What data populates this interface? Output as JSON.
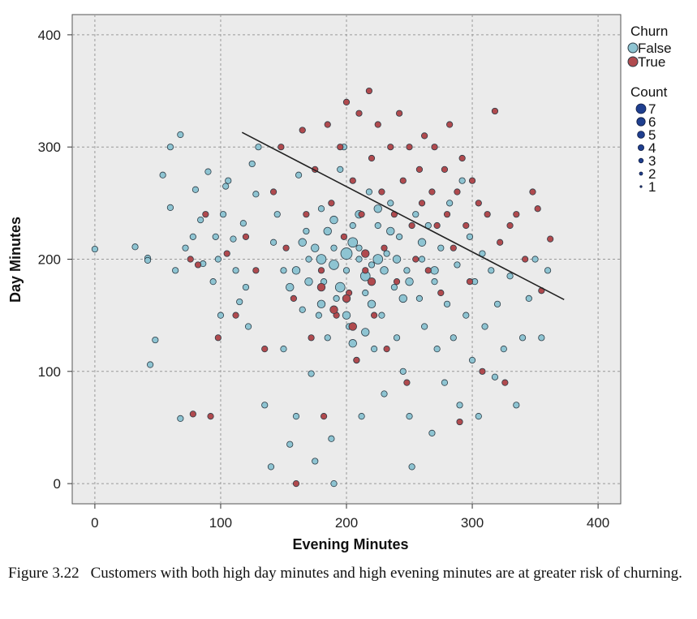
{
  "chart_data": {
    "type": "scatter",
    "xlabel": "Evening Minutes",
    "ylabel": "Day Minutes",
    "xlim": [
      -18,
      418
    ],
    "ylim": [
      -18,
      418
    ],
    "xticks": [
      0,
      100,
      200,
      300,
      400
    ],
    "yticks": [
      0,
      100,
      200,
      300,
      400
    ],
    "grid": true,
    "legend_placement": "right",
    "colors": {
      "False": "#8ec4d2",
      "True": "#b04a4e",
      "panel": "#ebebeb",
      "count": "#1f3f8f"
    },
    "legend_churn": {
      "title": "Churn",
      "entries": [
        "False",
        "True"
      ]
    },
    "legend_count": {
      "title": "Count",
      "entries": [
        "7",
        "6",
        "5",
        "4",
        "3",
        "2",
        "1"
      ]
    },
    "series": [
      {
        "name": "False",
        "points": [
          [
            0,
            209
          ],
          [
            32,
            211
          ],
          [
            42,
            201
          ],
          [
            42,
            199
          ],
          [
            44,
            106
          ],
          [
            48,
            128
          ],
          [
            54,
            275
          ],
          [
            60,
            300
          ],
          [
            60,
            246
          ],
          [
            64,
            190
          ],
          [
            68,
            311
          ],
          [
            68,
            58
          ],
          [
            72,
            210
          ],
          [
            78,
            220
          ],
          [
            80,
            262
          ],
          [
            84,
            235
          ],
          [
            86,
            196
          ],
          [
            90,
            278
          ],
          [
            94,
            180
          ],
          [
            96,
            220
          ],
          [
            98,
            200
          ],
          [
            100,
            150
          ],
          [
            102,
            240
          ],
          [
            104,
            265
          ],
          [
            106,
            270
          ],
          [
            110,
            218
          ],
          [
            112,
            190
          ],
          [
            115,
            162
          ],
          [
            118,
            232
          ],
          [
            120,
            175
          ],
          [
            122,
            140
          ],
          [
            125,
            285
          ],
          [
            128,
            258
          ],
          [
            130,
            300
          ],
          [
            135,
            70
          ],
          [
            140,
            15
          ],
          [
            142,
            215
          ],
          [
            145,
            240
          ],
          [
            150,
            190
          ],
          [
            150,
            120
          ],
          [
            155,
            35
          ],
          [
            160,
            60
          ],
          [
            162,
            275
          ],
          [
            165,
            155
          ],
          [
            168,
            225
          ],
          [
            170,
            200
          ],
          [
            172,
            98
          ],
          [
            175,
            20
          ],
          [
            178,
            150
          ],
          [
            180,
            245
          ],
          [
            182,
            180
          ],
          [
            185,
            130
          ],
          [
            188,
            40
          ],
          [
            190,
            0
          ],
          [
            190,
            210
          ],
          [
            192,
            165
          ],
          [
            195,
            280
          ],
          [
            198,
            300
          ],
          [
            200,
            190
          ],
          [
            202,
            140
          ],
          [
            205,
            230
          ],
          [
            208,
            110
          ],
          [
            210,
            210
          ],
          [
            212,
            60
          ],
          [
            215,
            170
          ],
          [
            218,
            260
          ],
          [
            220,
            195
          ],
          [
            222,
            120
          ],
          [
            225,
            230
          ],
          [
            228,
            150
          ],
          [
            230,
            80
          ],
          [
            232,
            205
          ],
          [
            235,
            250
          ],
          [
            238,
            175
          ],
          [
            240,
            130
          ],
          [
            242,
            220
          ],
          [
            245,
            100
          ],
          [
            248,
            190
          ],
          [
            250,
            60
          ],
          [
            252,
            15
          ],
          [
            255,
            240
          ],
          [
            258,
            165
          ],
          [
            260,
            200
          ],
          [
            262,
            140
          ],
          [
            265,
            230
          ],
          [
            268,
            45
          ],
          [
            270,
            180
          ],
          [
            272,
            120
          ],
          [
            275,
            210
          ],
          [
            278,
            90
          ],
          [
            280,
            160
          ],
          [
            282,
            250
          ],
          [
            285,
            130
          ],
          [
            288,
            195
          ],
          [
            290,
            70
          ],
          [
            292,
            270
          ],
          [
            295,
            150
          ],
          [
            298,
            220
          ],
          [
            300,
            110
          ],
          [
            302,
            180
          ],
          [
            305,
            60
          ],
          [
            308,
            205
          ],
          [
            310,
            140
          ],
          [
            315,
            190
          ],
          [
            318,
            95
          ],
          [
            320,
            160
          ],
          [
            325,
            120
          ],
          [
            330,
            185
          ],
          [
            335,
            70
          ],
          [
            340,
            130
          ],
          [
            345,
            165
          ],
          [
            350,
            200
          ],
          [
            355,
            130
          ],
          [
            360,
            190
          ],
          [
            210,
            200
          ],
          [
            200,
            205
          ],
          [
            190,
            195
          ],
          [
            215,
            185
          ],
          [
            205,
            215
          ],
          [
            180,
            200
          ],
          [
            225,
            200
          ],
          [
            195,
            175
          ],
          [
            230,
            190
          ],
          [
            185,
            225
          ],
          [
            170,
            180
          ],
          [
            240,
            200
          ],
          [
            220,
            160
          ],
          [
            160,
            190
          ],
          [
            250,
            180
          ],
          [
            210,
            240
          ],
          [
            200,
            150
          ],
          [
            175,
            210
          ],
          [
            235,
            225
          ],
          [
            165,
            215
          ],
          [
            215,
            135
          ],
          [
            245,
            165
          ],
          [
            190,
            235
          ],
          [
            260,
            215
          ],
          [
            155,
            175
          ],
          [
            205,
            125
          ],
          [
            270,
            190
          ],
          [
            180,
            160
          ],
          [
            225,
            245
          ]
        ],
        "sizes": [
          2,
          2,
          2,
          2,
          2,
          2,
          2,
          2,
          2,
          2,
          2,
          2,
          2,
          2,
          2,
          2,
          2,
          2,
          2,
          2,
          2,
          2,
          2,
          2,
          2,
          2,
          2,
          2,
          2,
          2,
          2,
          2,
          2,
          2,
          2,
          2,
          2,
          2,
          2,
          2,
          2,
          2,
          2,
          2,
          2,
          2,
          2,
          2,
          2,
          2,
          2,
          2,
          2,
          2,
          2,
          2,
          2,
          2,
          2,
          2,
          2,
          2,
          2,
          2,
          2,
          2,
          2,
          2,
          2,
          2,
          2,
          2,
          2,
          2,
          2,
          2,
          2,
          2,
          2,
          2,
          2,
          2,
          2,
          2,
          2,
          2,
          2,
          2,
          2,
          2,
          2,
          2,
          2,
          2,
          2,
          2,
          2,
          2,
          2,
          2,
          2,
          2,
          2,
          2,
          2,
          2,
          2,
          2,
          2,
          2,
          2,
          2,
          2,
          2,
          2,
          5,
          4,
          4,
          4,
          4,
          4,
          4,
          3,
          3,
          3,
          3,
          3,
          3,
          3,
          3,
          3,
          3,
          3,
          3,
          3,
          3,
          3,
          3,
          3,
          3,
          3,
          3,
          3,
          3
        ]
      },
      {
        "name": "True",
        "points": [
          [
            76,
            200
          ],
          [
            78,
            62
          ],
          [
            82,
            195
          ],
          [
            88,
            240
          ],
          [
            92,
            60
          ],
          [
            98,
            130
          ],
          [
            105,
            205
          ],
          [
            112,
            150
          ],
          [
            120,
            220
          ],
          [
            128,
            190
          ],
          [
            135,
            120
          ],
          [
            142,
            260
          ],
          [
            148,
            300
          ],
          [
            152,
            210
          ],
          [
            158,
            165
          ],
          [
            160,
            0
          ],
          [
            165,
            315
          ],
          [
            168,
            240
          ],
          [
            172,
            130
          ],
          [
            175,
            280
          ],
          [
            180,
            190
          ],
          [
            182,
            60
          ],
          [
            185,
            320
          ],
          [
            188,
            250
          ],
          [
            192,
            150
          ],
          [
            195,
            300
          ],
          [
            198,
            220
          ],
          [
            200,
            340
          ],
          [
            202,
            170
          ],
          [
            205,
            270
          ],
          [
            208,
            110
          ],
          [
            210,
            330
          ],
          [
            212,
            240
          ],
          [
            215,
            190
          ],
          [
            218,
            350
          ],
          [
            220,
            290
          ],
          [
            222,
            150
          ],
          [
            225,
            320
          ],
          [
            228,
            260
          ],
          [
            230,
            210
          ],
          [
            232,
            120
          ],
          [
            235,
            300
          ],
          [
            238,
            240
          ],
          [
            240,
            180
          ],
          [
            242,
            330
          ],
          [
            245,
            270
          ],
          [
            248,
            90
          ],
          [
            250,
            300
          ],
          [
            252,
            230
          ],
          [
            255,
            200
          ],
          [
            258,
            280
          ],
          [
            260,
            250
          ],
          [
            262,
            310
          ],
          [
            265,
            190
          ],
          [
            268,
            260
          ],
          [
            270,
            300
          ],
          [
            272,
            230
          ],
          [
            275,
            170
          ],
          [
            278,
            280
          ],
          [
            280,
            240
          ],
          [
            282,
            320
          ],
          [
            285,
            210
          ],
          [
            288,
            260
          ],
          [
            290,
            55
          ],
          [
            292,
            290
          ],
          [
            295,
            230
          ],
          [
            298,
            180
          ],
          [
            300,
            270
          ],
          [
            305,
            250
          ],
          [
            308,
            100
          ],
          [
            312,
            240
          ],
          [
            318,
            332
          ],
          [
            322,
            215
          ],
          [
            326,
            90
          ],
          [
            330,
            230
          ],
          [
            335,
            240
          ],
          [
            342,
            200
          ],
          [
            348,
            260
          ],
          [
            352,
            245
          ],
          [
            355,
            172
          ],
          [
            362,
            218
          ],
          [
            200,
            165
          ],
          [
            180,
            175
          ],
          [
            220,
            180
          ],
          [
            190,
            155
          ],
          [
            215,
            205
          ],
          [
            205,
            140
          ]
        ],
        "sizes": [
          2,
          2,
          2,
          2,
          2,
          2,
          2,
          2,
          2,
          2,
          2,
          2,
          2,
          2,
          2,
          2,
          2,
          2,
          2,
          2,
          2,
          2,
          2,
          2,
          2,
          2,
          2,
          2,
          2,
          2,
          2,
          2,
          2,
          2,
          2,
          2,
          2,
          2,
          2,
          2,
          2,
          2,
          2,
          2,
          2,
          2,
          2,
          2,
          2,
          2,
          2,
          2,
          2,
          2,
          2,
          2,
          2,
          2,
          2,
          2,
          2,
          2,
          2,
          2,
          2,
          2,
          2,
          2,
          2,
          2,
          2,
          2,
          2,
          2,
          2,
          2,
          2,
          2,
          2,
          2,
          2,
          3,
          3,
          3,
          3,
          3,
          3
        ]
      }
    ],
    "trend_line": [
      [
        117,
        313
      ],
      [
        373,
        164
      ]
    ]
  },
  "caption": {
    "label": "Figure 3.22",
    "text": "Customers with both high day minutes and high evening minutes are at greater risk of churning."
  }
}
